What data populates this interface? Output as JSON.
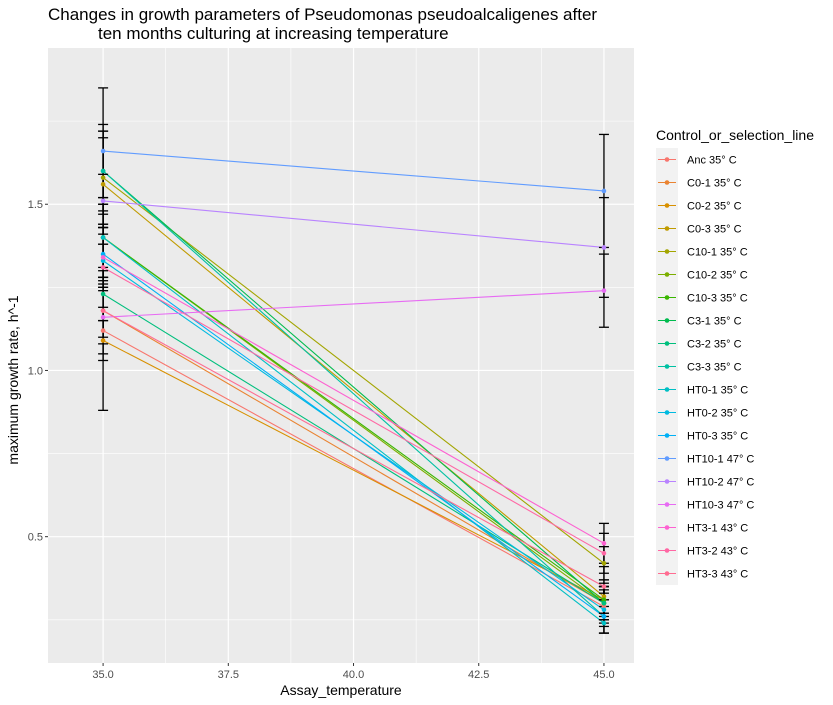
{
  "chart_data": {
    "type": "line",
    "title_lines": [
      "Changes in growth parameters of Pseudomonas pseudoalcaligenes after",
      "ten months culturing at increasing temperature"
    ],
    "xlabel": "Assay_temperature",
    "ylabel": "maximum growth rate, h^-1",
    "xlim": [
      33.9,
      45.6
    ],
    "ylim": [
      0.12,
      1.97
    ],
    "x_ticks": [
      35.0,
      37.5,
      40.0,
      42.5,
      45.0
    ],
    "x_tick_labels": [
      "35.0",
      "37.5",
      "40.0",
      "42.5",
      "45.0"
    ],
    "y_ticks": [
      0.5,
      1.0,
      1.5
    ],
    "y_tick_labels": [
      "0.5",
      "1.0",
      "1.5"
    ],
    "grid": true,
    "legend_title": "Control_or_selection_line",
    "legend_position": "right",
    "series": [
      {
        "name": "Anc 35° C",
        "color": "#F8766D",
        "x": [
          35,
          45
        ],
        "y": [
          1.12,
          0.29
        ],
        "err": [
          0.07,
          0.05
        ]
      },
      {
        "name": "C0-1 35° C",
        "color": "#EA8331",
        "x": [
          35,
          45
        ],
        "y": [
          1.18,
          0.3
        ],
        "err": [
          0.1,
          0.05
        ]
      },
      {
        "name": "C0-2 35° C",
        "color": "#D89000",
        "x": [
          35,
          45
        ],
        "y": [
          1.09,
          0.31
        ],
        "err": [
          0.06,
          0.04
        ]
      },
      {
        "name": "C0-3 35° C",
        "color": "#C09B00",
        "x": [
          35,
          45
        ],
        "y": [
          1.56,
          0.32
        ],
        "err": [
          0.18,
          0.05
        ]
      },
      {
        "name": "C10-1 35° C",
        "color": "#A3A500",
        "x": [
          35,
          45
        ],
        "y": [
          1.58,
          0.42
        ],
        "err": [
          0.14,
          0.05
        ]
      },
      {
        "name": "C10-2 35° C",
        "color": "#7CAE00",
        "x": [
          35,
          45
        ],
        "y": [
          1.4,
          0.3
        ],
        "err": [
          0.12,
          0.05
        ]
      },
      {
        "name": "C10-3 35° C",
        "color": "#39B600",
        "x": [
          35,
          45
        ],
        "y": [
          1.4,
          0.31
        ],
        "err": [
          0.12,
          0.05
        ]
      },
      {
        "name": "C3-1 35° C",
        "color": "#00BB4E",
        "x": [
          35,
          45
        ],
        "y": [
          1.6,
          0.3
        ],
        "err": [
          0.12,
          0.05
        ]
      },
      {
        "name": "C3-2 35° C",
        "color": "#00BF7D",
        "x": [
          35,
          45
        ],
        "y": [
          1.23,
          0.3
        ],
        "err": [
          0.08,
          0.05
        ]
      },
      {
        "name": "C3-3 35° C",
        "color": "#00C1A3",
        "x": [
          35,
          45
        ],
        "y": [
          1.6,
          0.26
        ],
        "err": [
          0.1,
          0.05
        ]
      },
      {
        "name": "HT0-1 35° C",
        "color": "#00BFC4",
        "x": [
          35,
          45
        ],
        "y": [
          1.4,
          0.24
        ],
        "err": [
          0.1,
          0.03
        ]
      },
      {
        "name": "HT0-2 35° C",
        "color": "#00BAE0",
        "x": [
          35,
          45
        ],
        "y": [
          1.33,
          0.28
        ],
        "err": [
          0.08,
          0.05
        ]
      },
      {
        "name": "HT0-3 35° C",
        "color": "#00B0F6",
        "x": [
          35,
          45
        ],
        "y": [
          1.35,
          0.26
        ],
        "err": [
          0.08,
          0.05
        ]
      },
      {
        "name": "HT10-1 47° C",
        "color": "#619CFF",
        "x": [
          35,
          45
        ],
        "y": [
          1.66,
          1.54
        ],
        "err": [
          0.19,
          0.17
        ]
      },
      {
        "name": "HT10-2 47° C",
        "color": "#B983FF",
        "x": [
          35,
          45
        ],
        "y": [
          1.51,
          1.37
        ],
        "err": [
          0.08,
          0.15
        ]
      },
      {
        "name": "HT10-3 47° C",
        "color": "#E76BF3",
        "x": [
          35,
          45
        ],
        "y": [
          1.16,
          1.24
        ],
        "err": [
          0.28,
          0.11
        ]
      },
      {
        "name": "HT3-1 43° C",
        "color": "#FD61D1",
        "x": [
          35,
          45
        ],
        "y": [
          1.34,
          0.48
        ],
        "err": [
          0.09,
          0.06
        ]
      },
      {
        "name": "HT3-2 43° C",
        "color": "#FF67A4",
        "x": [
          35,
          45
        ],
        "y": [
          1.31,
          0.45
        ],
        "err": [
          0.07,
          0.06
        ]
      },
      {
        "name": "HT3-3 43° C",
        "color": "#FF6C91",
        "x": [
          35,
          45
        ],
        "y": [
          1.18,
          0.35
        ],
        "err": [
          0.08,
          0.06
        ]
      }
    ]
  }
}
